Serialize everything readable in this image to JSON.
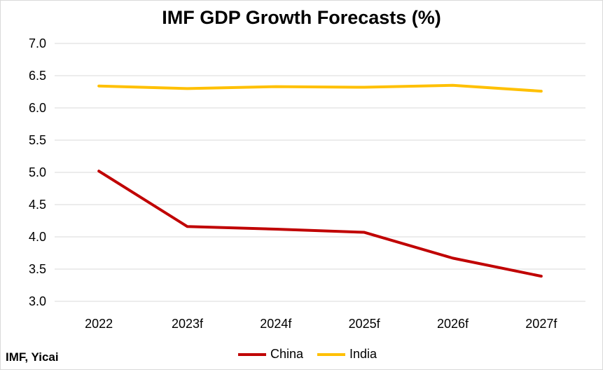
{
  "chart_data": {
    "type": "line",
    "title": "IMF GDP Growth Forecasts (%)",
    "categories": [
      "2022",
      "2023f",
      "2024f",
      "2025f",
      "2026f",
      "2027f"
    ],
    "ylim": [
      3.0,
      7.0
    ],
    "yticks": [
      "3.0",
      "3.5",
      "4.0",
      "4.5",
      "5.0",
      "5.5",
      "6.0",
      "6.5",
      "7.0"
    ],
    "grid": true,
    "legend_position": "bottom",
    "series": [
      {
        "name": "China",
        "color": "#c00000",
        "values": [
          5.02,
          4.16,
          4.12,
          4.07,
          3.67,
          3.39
        ]
      },
      {
        "name": "India",
        "color": "#ffc000",
        "values": [
          6.34,
          6.3,
          6.33,
          6.32,
          6.35,
          6.26
        ]
      }
    ]
  },
  "source": "IMF, Yicai"
}
